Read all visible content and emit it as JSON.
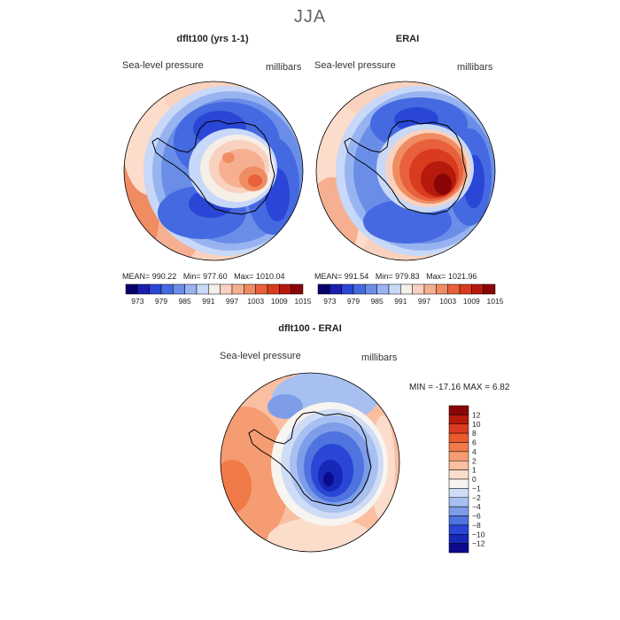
{
  "title": "JJA",
  "panels": [
    {
      "title": "dflt100 (yrs 1-1)",
      "variable": "Sea-level pressure",
      "units": "millibars",
      "stats": {
        "mean_label": "MEAN=",
        "mean": "990.22",
        "min_label": "Min=",
        "min": "977.60",
        "max_label": "Max=",
        "max": "1010.04"
      }
    },
    {
      "title": "ERAI",
      "variable": "Sea-level pressure",
      "units": "millibars",
      "stats": {
        "mean_label": "MEAN=",
        "mean": "991.54",
        "min_label": "Min=",
        "min": "979.83",
        "max_label": "Max=",
        "max": "1021.96"
      }
    }
  ],
  "shared_colorbar": {
    "tick_labels": [
      "973",
      "979",
      "985",
      "991",
      "997",
      "1003",
      "1009",
      "1015"
    ],
    "colors": [
      "#08006b",
      "#1a1fb0",
      "#2a46d6",
      "#4569e0",
      "#6a8ee8",
      "#98b4f0",
      "#c8d8f8",
      "#f5efe8",
      "#f9d2bf",
      "#f6b091",
      "#f08c62",
      "#e8613c",
      "#d93b1f",
      "#b51a0c",
      "#8a0505"
    ]
  },
  "difference": {
    "title": "dflt100 - ERAI",
    "variable": "Sea-level pressure",
    "units": "millibars",
    "stats": "MIN = -17.16 MAX =    6.82",
    "colorbar": {
      "tick_labels": [
        "12",
        "10",
        "8",
        "6",
        "4",
        "2",
        "1",
        "0",
        "−1",
        "−2",
        "−4",
        "−6",
        "−8",
        "−10",
        "−12"
      ],
      "colors": [
        "#8a0505",
        "#b51a0c",
        "#d93b1f",
        "#ea5a2c",
        "#f07a48",
        "#f59c72",
        "#f9bfa0",
        "#fcdccb",
        "#f8f4f0",
        "#cfdcf6",
        "#a8c0f0",
        "#7d9de8",
        "#4f73df",
        "#2a46d6",
        "#1628b8",
        "#0a0a8a"
      ]
    }
  },
  "colors": {
    "title_gray": "#666666",
    "map_outline": "#000000"
  }
}
